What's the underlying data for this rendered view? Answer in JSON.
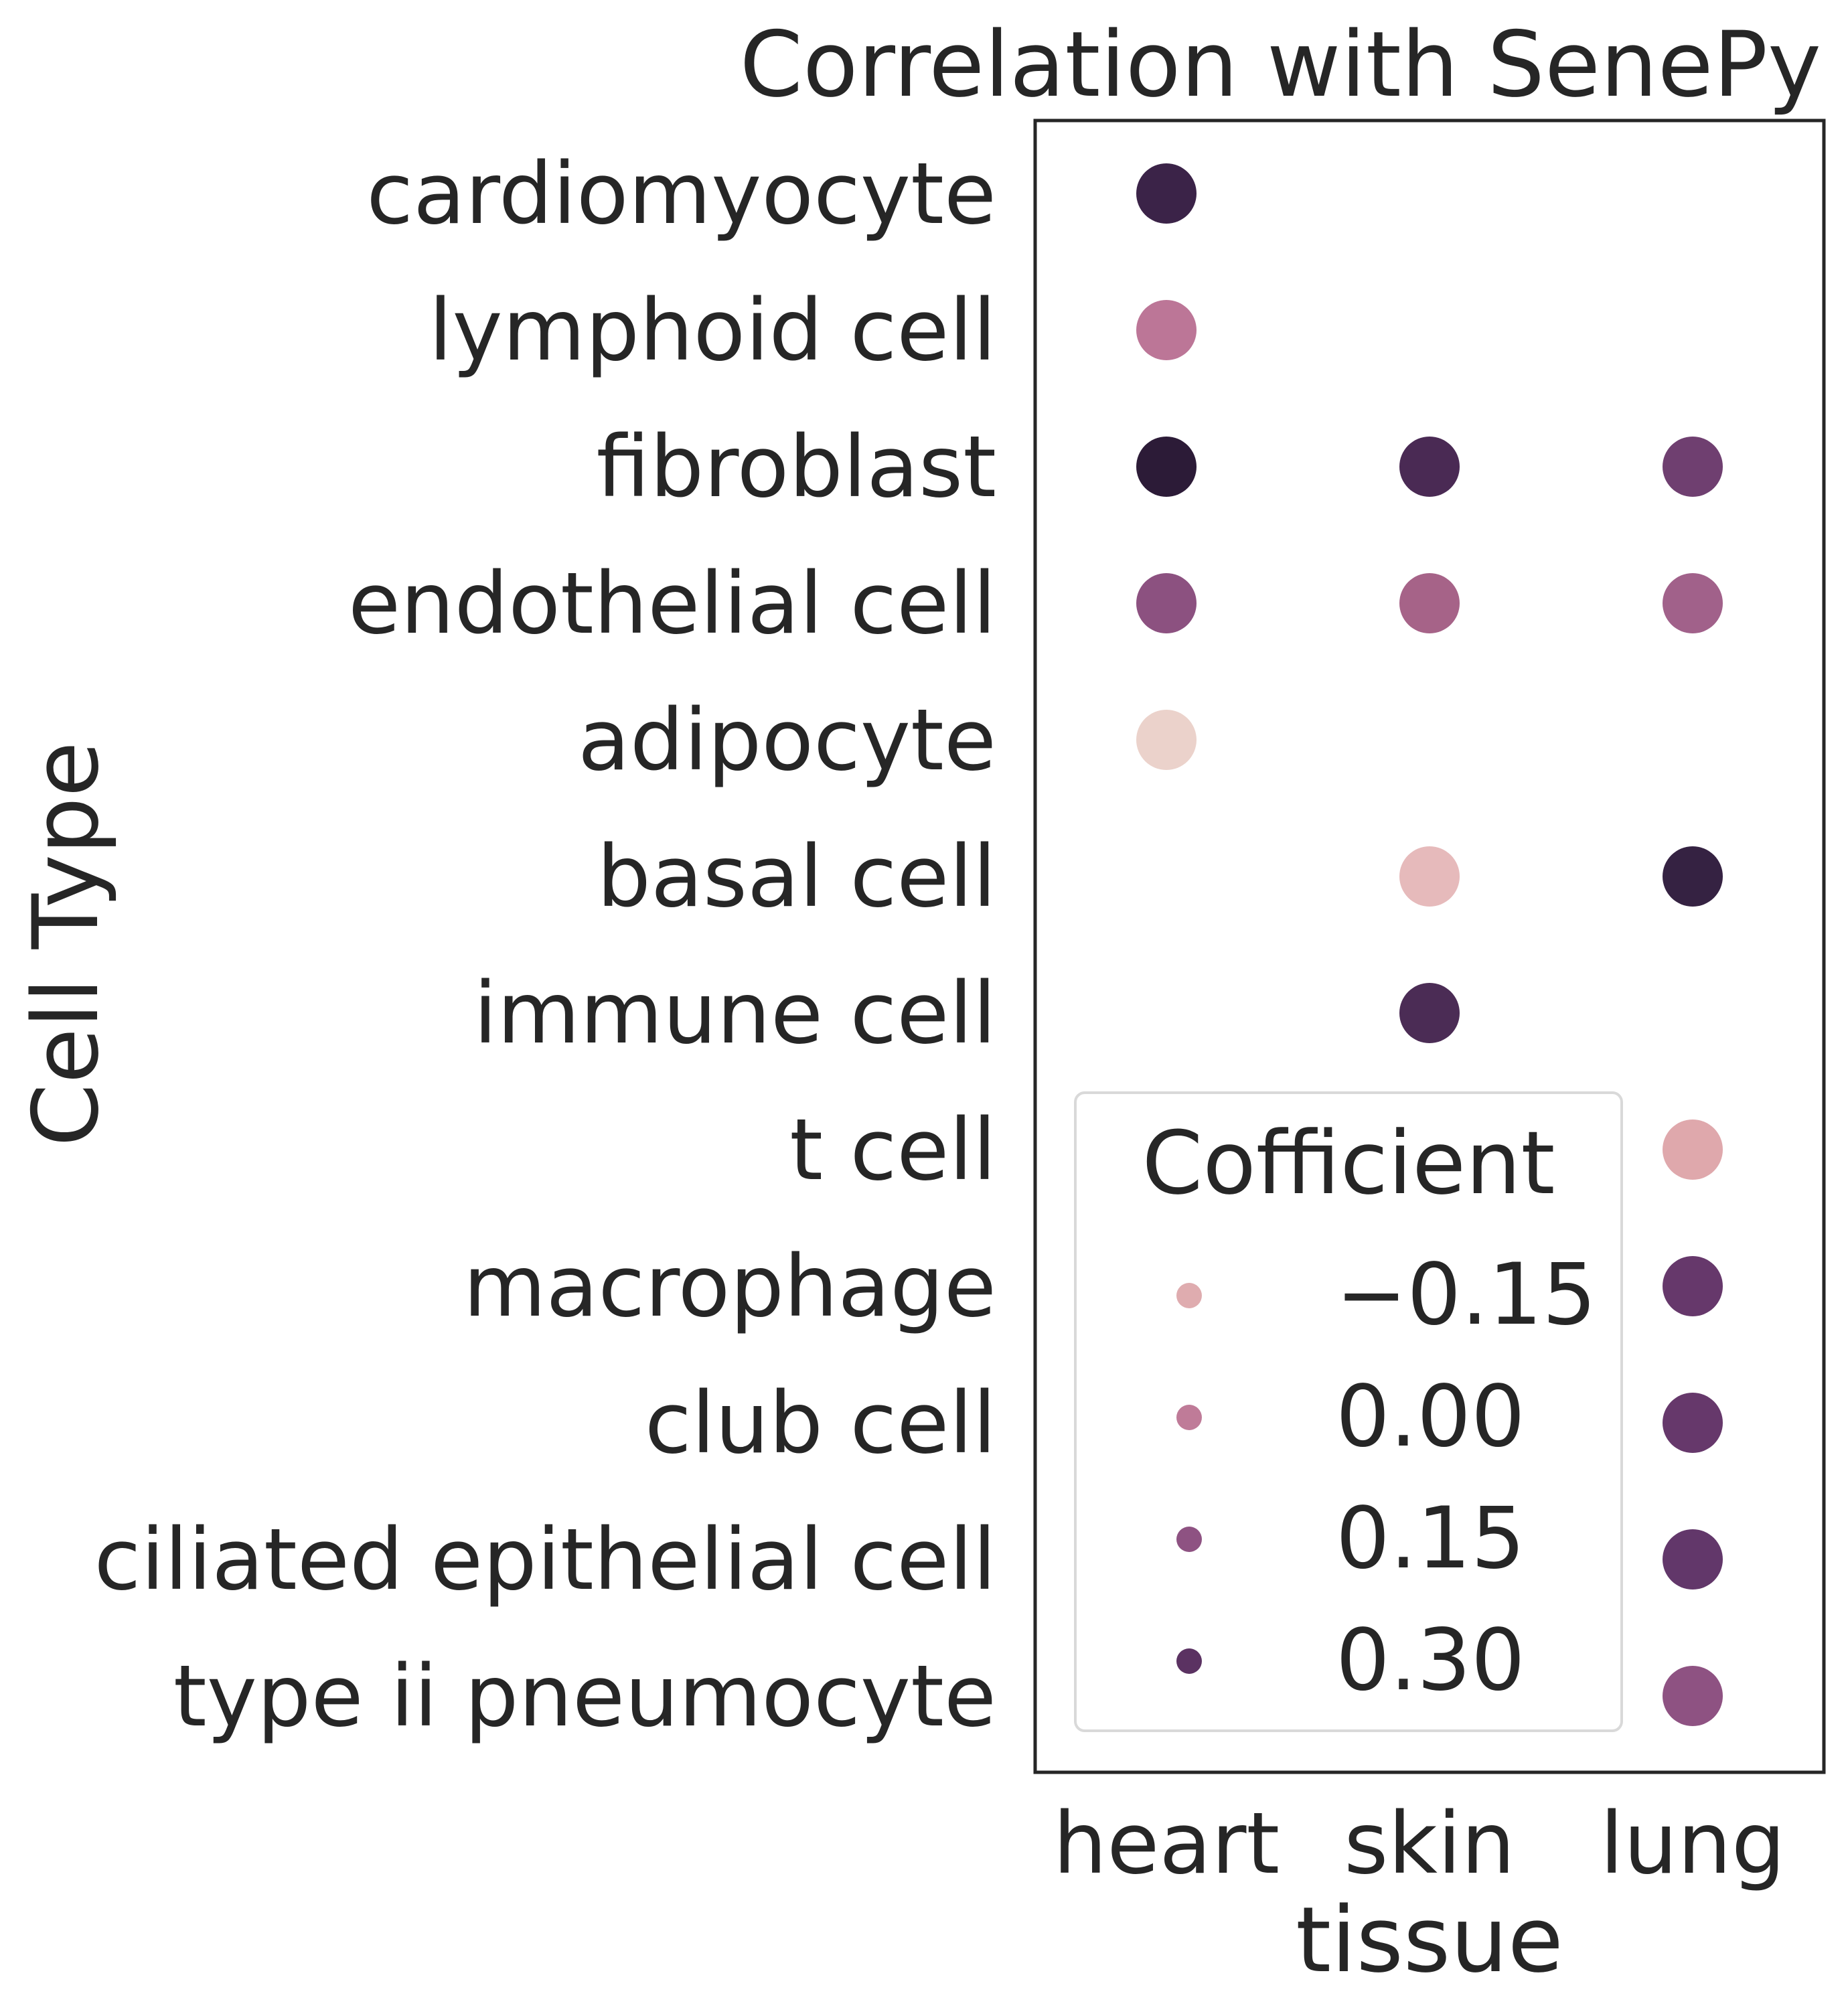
{
  "chart_data": {
    "type": "scatter",
    "title": "Correlation with SenePy",
    "xlabel": "tissue",
    "ylabel": "Cell Type",
    "x_categories": [
      "heart",
      "skin",
      "lung"
    ],
    "y_categories": [
      "cardiomyocyte",
      "lymphoid cell",
      "fibroblast",
      "endothelial cell",
      "adipocyte",
      "basal cell",
      "immune cell",
      "t cell",
      "macrophage",
      "club cell",
      "ciliated epithelial cell",
      "type ii pneumocyte"
    ],
    "color_range": [
      -0.27,
      0.45
    ],
    "colormap": [
      "#f0ddd6",
      "#dba3a8",
      "#bb7597",
      "#8c4f80",
      "#5c3565",
      "#2a1a36"
    ],
    "points": [
      {
        "tissue": "heart",
        "cell_type": "cardiomyocyte",
        "value": 0.38,
        "color": "#3b2348"
      },
      {
        "tissue": "heart",
        "cell_type": "lymphoid cell",
        "value": 0.0,
        "color": "#bc7697"
      },
      {
        "tissue": "heart",
        "cell_type": "fibroblast",
        "value": 0.43,
        "color": "#2c1b37"
      },
      {
        "tissue": "skin",
        "cell_type": "fibroblast",
        "value": 0.34,
        "color": "#4a2a54"
      },
      {
        "tissue": "lung",
        "cell_type": "fibroblast",
        "value": 0.2,
        "color": "#6f3f70"
      },
      {
        "tissue": "heart",
        "cell_type": "endothelial cell",
        "value": 0.16,
        "color": "#8c5180"
      },
      {
        "tissue": "skin",
        "cell_type": "endothelial cell",
        "value": 0.05,
        "color": "#a66388"
      },
      {
        "tissue": "lung",
        "cell_type": "endothelial cell",
        "value": 0.06,
        "color": "#a1618a"
      },
      {
        "tissue": "heart",
        "cell_type": "adipocyte",
        "value": -0.26,
        "color": "#ebd2cb"
      },
      {
        "tissue": "skin",
        "cell_type": "basal cell",
        "value": -0.2,
        "color": "#e6babb"
      },
      {
        "tissue": "lung",
        "cell_type": "basal cell",
        "value": 0.4,
        "color": "#352242"
      },
      {
        "tissue": "skin",
        "cell_type": "immune cell",
        "value": 0.33,
        "color": "#4b2c55"
      },
      {
        "tissue": "lung",
        "cell_type": "t cell",
        "value": -0.15,
        "color": "#dfa8ac"
      },
      {
        "tissue": "lung",
        "cell_type": "macrophage",
        "value": 0.26,
        "color": "#66386b"
      },
      {
        "tissue": "lung",
        "cell_type": "club cell",
        "value": 0.26,
        "color": "#66386b"
      },
      {
        "tissue": "lung",
        "cell_type": "ciliated epithelial cell",
        "value": 0.28,
        "color": "#62376a"
      },
      {
        "tissue": "lung",
        "cell_type": "type ii pneumocyte",
        "value": 0.15,
        "color": "#8e5282"
      }
    ],
    "legend": {
      "title": "Cofficient",
      "placement": "lower-center",
      "entries": [
        {
          "label": "−0.15",
          "color": "#dfacaf"
        },
        {
          "label": "0.00",
          "color": "#bf7b98"
        },
        {
          "label": "0.15",
          "color": "#8e5282"
        },
        {
          "label": "0.30",
          "color": "#5b3262"
        }
      ]
    },
    "grid": false
  }
}
